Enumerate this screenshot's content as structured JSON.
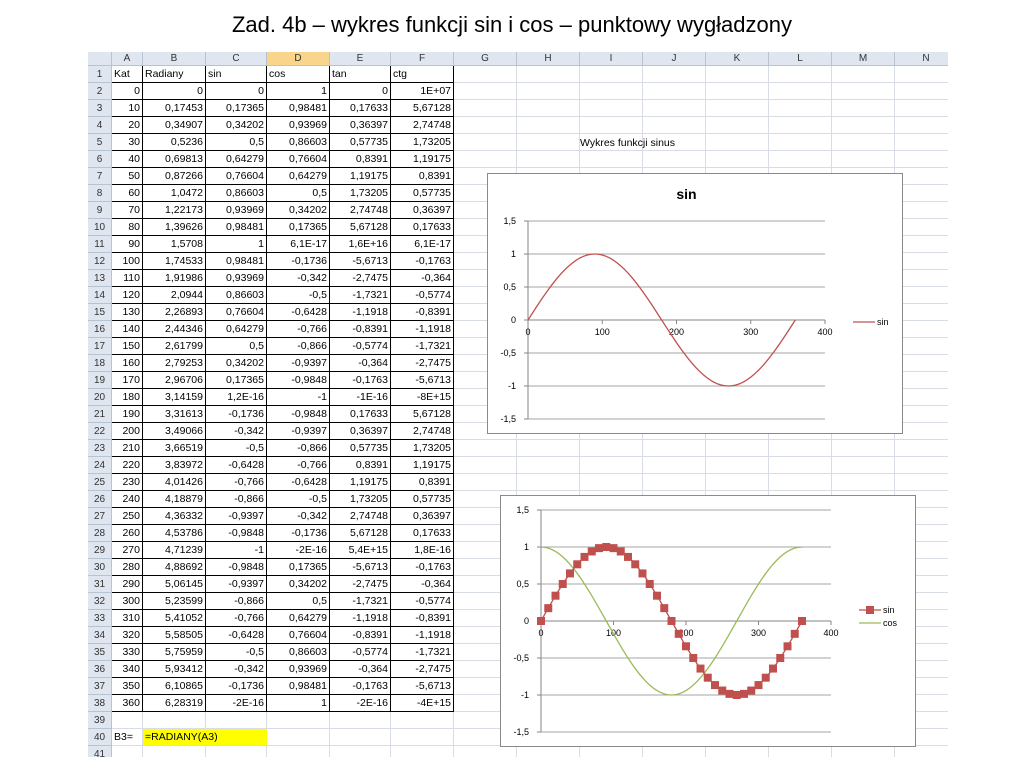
{
  "slide": {
    "title": "Zad. 4b – wykres funkcji sin i cos – punktowy wygładzony"
  },
  "sheet": {
    "columns": [
      "A",
      "B",
      "C",
      "D",
      "E",
      "F",
      "G",
      "H",
      "I",
      "J",
      "K",
      "L",
      "M",
      "N"
    ],
    "selected_column": "D",
    "table_header": [
      "Kat",
      "Radiany",
      "sin",
      "cos",
      "tan",
      "ctg"
    ],
    "rows": [
      [
        "0",
        "0",
        "0",
        "1",
        "0",
        "1E+07"
      ],
      [
        "10",
        "0,17453",
        "0,17365",
        "0,98481",
        "0,17633",
        "5,67128"
      ],
      [
        "20",
        "0,34907",
        "0,34202",
        "0,93969",
        "0,36397",
        "2,74748"
      ],
      [
        "30",
        "0,5236",
        "0,5",
        "0,86603",
        "0,57735",
        "1,73205"
      ],
      [
        "40",
        "0,69813",
        "0,64279",
        "0,76604",
        "0,8391",
        "1,19175"
      ],
      [
        "50",
        "0,87266",
        "0,76604",
        "0,64279",
        "1,19175",
        "0,8391"
      ],
      [
        "60",
        "1,0472",
        "0,86603",
        "0,5",
        "1,73205",
        "0,57735"
      ],
      [
        "70",
        "1,22173",
        "0,93969",
        "0,34202",
        "2,74748",
        "0,36397"
      ],
      [
        "80",
        "1,39626",
        "0,98481",
        "0,17365",
        "5,67128",
        "0,17633"
      ],
      [
        "90",
        "1,5708",
        "1",
        "6,1E-17",
        "1,6E+16",
        "6,1E-17"
      ],
      [
        "100",
        "1,74533",
        "0,98481",
        "-0,1736",
        "-5,6713",
        "-0,1763"
      ],
      [
        "110",
        "1,91986",
        "0,93969",
        "-0,342",
        "-2,7475",
        "-0,364"
      ],
      [
        "120",
        "2,0944",
        "0,86603",
        "-0,5",
        "-1,7321",
        "-0,5774"
      ],
      [
        "130",
        "2,26893",
        "0,76604",
        "-0,6428",
        "-1,1918",
        "-0,8391"
      ],
      [
        "140",
        "2,44346",
        "0,64279",
        "-0,766",
        "-0,8391",
        "-1,1918"
      ],
      [
        "150",
        "2,61799",
        "0,5",
        "-0,866",
        "-0,5774",
        "-1,7321"
      ],
      [
        "160",
        "2,79253",
        "0,34202",
        "-0,9397",
        "-0,364",
        "-2,7475"
      ],
      [
        "170",
        "2,96706",
        "0,17365",
        "-0,9848",
        "-0,1763",
        "-5,6713"
      ],
      [
        "180",
        "3,14159",
        "1,2E-16",
        "-1",
        "-1E-16",
        "-8E+15"
      ],
      [
        "190",
        "3,31613",
        "-0,1736",
        "-0,9848",
        "0,17633",
        "5,67128"
      ],
      [
        "200",
        "3,49066",
        "-0,342",
        "-0,9397",
        "0,36397",
        "2,74748"
      ],
      [
        "210",
        "3,66519",
        "-0,5",
        "-0,866",
        "0,57735",
        "1,73205"
      ],
      [
        "220",
        "3,83972",
        "-0,6428",
        "-0,766",
        "0,8391",
        "1,19175"
      ],
      [
        "230",
        "4,01426",
        "-0,766",
        "-0,6428",
        "1,19175",
        "0,8391"
      ],
      [
        "240",
        "4,18879",
        "-0,866",
        "-0,5",
        "1,73205",
        "0,57735"
      ],
      [
        "250",
        "4,36332",
        "-0,9397",
        "-0,342",
        "2,74748",
        "0,36397"
      ],
      [
        "260",
        "4,53786",
        "-0,9848",
        "-0,1736",
        "5,67128",
        "0,17633"
      ],
      [
        "270",
        "4,71239",
        "-1",
        "-2E-16",
        "5,4E+15",
        "1,8E-16"
      ],
      [
        "280",
        "4,88692",
        "-0,9848",
        "0,17365",
        "-5,6713",
        "-0,1763"
      ],
      [
        "290",
        "5,06145",
        "-0,9397",
        "0,34202",
        "-2,7475",
        "-0,364"
      ],
      [
        "300",
        "5,23599",
        "-0,866",
        "0,5",
        "-1,7321",
        "-0,5774"
      ],
      [
        "310",
        "5,41052",
        "-0,766",
        "0,64279",
        "-1,1918",
        "-0,8391"
      ],
      [
        "320",
        "5,58505",
        "-0,6428",
        "0,76604",
        "-0,8391",
        "-1,1918"
      ],
      [
        "330",
        "5,75959",
        "-0,5",
        "0,86603",
        "-0,5774",
        "-1,7321"
      ],
      [
        "340",
        "5,93412",
        "-0,342",
        "0,93969",
        "-0,364",
        "-2,7475"
      ],
      [
        "350",
        "6,10865",
        "-0,1736",
        "0,98481",
        "-0,1763",
        "-5,6713"
      ],
      [
        "360",
        "6,28319",
        "-2E-16",
        "1",
        "-2E-16",
        "-4E+15"
      ]
    ],
    "row_numbers": [
      "1",
      "2",
      "3",
      "4",
      "5",
      "6",
      "7",
      "8",
      "9",
      "10",
      "11",
      "12",
      "13",
      "14",
      "15",
      "16",
      "17",
      "18",
      "19",
      "20",
      "21",
      "22",
      "23",
      "24",
      "25",
      "26",
      "27",
      "28",
      "29",
      "30",
      "31",
      "32",
      "33",
      "34",
      "35",
      "36",
      "37",
      "38",
      "39",
      "40",
      "41"
    ],
    "formula_note": {
      "label": "B3=",
      "formula": "=RADIANY(A3)"
    },
    "sin_chart_cell_label": "Wykres funkcji sinus"
  },
  "colors": {
    "sin_line": "#c0504d",
    "sin_marker": "#c0504d",
    "cos_line": "#9bbb59",
    "axis": "#868686",
    "gridline": "#868686",
    "header_bg": "#dfe6ef",
    "selected_header": "#f9d58c",
    "highlight": "#ffff00"
  },
  "chart_data": [
    {
      "type": "line",
      "title": "sin",
      "xlabel": "",
      "ylabel": "",
      "xlim": [
        0,
        400
      ],
      "ylim": [
        -1.5,
        1.5
      ],
      "x_ticks": [
        "0",
        "100",
        "200",
        "300",
        "400"
      ],
      "y_ticks": [
        "1,5",
        "1",
        "0,5",
        "0",
        "-0,5",
        "-1",
        "-1,5"
      ],
      "legend_position": "right",
      "grid": true,
      "markers": false,
      "x": [
        0,
        10,
        20,
        30,
        40,
        50,
        60,
        70,
        80,
        90,
        100,
        110,
        120,
        130,
        140,
        150,
        160,
        170,
        180,
        190,
        200,
        210,
        220,
        230,
        240,
        250,
        260,
        270,
        280,
        290,
        300,
        310,
        320,
        330,
        340,
        350,
        360
      ],
      "series": [
        {
          "name": "sin",
          "color": "#c0504d",
          "values": [
            0,
            0.17365,
            0.34202,
            0.5,
            0.64279,
            0.76604,
            0.86603,
            0.93969,
            0.98481,
            1,
            0.98481,
            0.93969,
            0.86603,
            0.76604,
            0.64279,
            0.5,
            0.34202,
            0.17365,
            0,
            -0.1736,
            -0.342,
            -0.5,
            -0.6428,
            -0.766,
            -0.866,
            -0.9397,
            -0.9848,
            -1,
            -0.9848,
            -0.9397,
            -0.866,
            -0.766,
            -0.6428,
            -0.5,
            -0.342,
            -0.1736,
            0
          ]
        }
      ]
    },
    {
      "type": "line",
      "title": "",
      "xlabel": "",
      "ylabel": "",
      "xlim": [
        0,
        400
      ],
      "ylim": [
        -1.5,
        1.5
      ],
      "x_ticks": [
        "0",
        "100",
        "200",
        "300",
        "400"
      ],
      "y_ticks": [
        "1,5",
        "1",
        "0,5",
        "0",
        "-0,5",
        "-1",
        "-1,5"
      ],
      "legend_position": "right",
      "grid": true,
      "x": [
        0,
        10,
        20,
        30,
        40,
        50,
        60,
        70,
        80,
        90,
        100,
        110,
        120,
        130,
        140,
        150,
        160,
        170,
        180,
        190,
        200,
        210,
        220,
        230,
        240,
        250,
        260,
        270,
        280,
        290,
        300,
        310,
        320,
        330,
        340,
        350,
        360
      ],
      "series": [
        {
          "name": "sin",
          "color": "#c0504d",
          "markers": true,
          "values": [
            0,
            0.17365,
            0.34202,
            0.5,
            0.64279,
            0.76604,
            0.86603,
            0.93969,
            0.98481,
            1,
            0.98481,
            0.93969,
            0.86603,
            0.76604,
            0.64279,
            0.5,
            0.34202,
            0.17365,
            0,
            -0.1736,
            -0.342,
            -0.5,
            -0.6428,
            -0.766,
            -0.866,
            -0.9397,
            -0.9848,
            -1,
            -0.9848,
            -0.9397,
            -0.866,
            -0.766,
            -0.6428,
            -0.5,
            -0.342,
            -0.1736,
            0
          ]
        },
        {
          "name": "cos",
          "color": "#9bbb59",
          "markers": false,
          "values": [
            1,
            0.98481,
            0.93969,
            0.86603,
            0.76604,
            0.64279,
            0.5,
            0.34202,
            0.17365,
            0,
            -0.1736,
            -0.342,
            -0.5,
            -0.6428,
            -0.766,
            -0.866,
            -0.9397,
            -0.9848,
            -1,
            -0.9848,
            -0.9397,
            -0.866,
            -0.766,
            -0.6428,
            -0.5,
            -0.342,
            -0.1736,
            0,
            0.17365,
            0.34202,
            0.5,
            0.64279,
            0.76604,
            0.86603,
            0.93969,
            0.98481,
            1
          ]
        }
      ]
    }
  ]
}
